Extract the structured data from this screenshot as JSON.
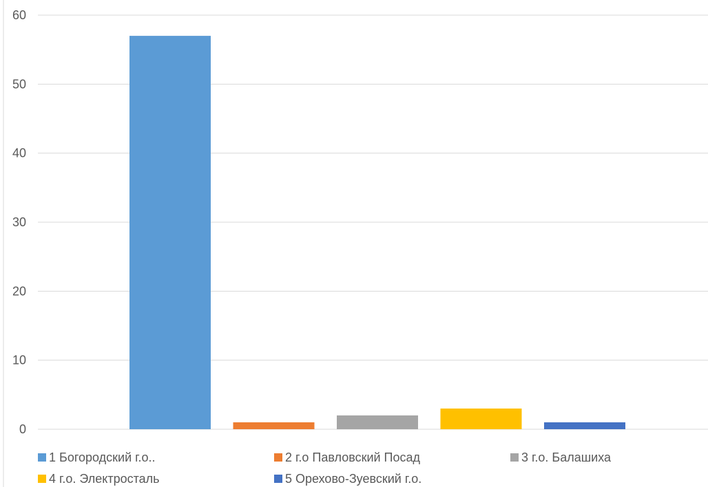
{
  "chart_data": {
    "type": "bar",
    "title": "",
    "xlabel": "",
    "ylabel": "",
    "ylim": [
      0,
      60
    ],
    "yticks": [
      "0",
      "10",
      "20",
      "30",
      "40",
      "50",
      "60"
    ],
    "grid": true,
    "legend_position": "bottom",
    "series": [
      {
        "name": "1 Богородский г.о..",
        "value": 57,
        "color": "#5b9bd5"
      },
      {
        "name": "2 г.о Павловский Посад",
        "value": 1,
        "color": "#ed7d31"
      },
      {
        "name": "3 г.о. Балашиха",
        "value": 2,
        "color": "#a5a5a5"
      },
      {
        "name": "4 г.о. Электросталь",
        "value": 3,
        "color": "#ffc000"
      },
      {
        "name": "5 Орехово-Зуевский г.о.",
        "value": 1,
        "color": "#4472c4"
      }
    ]
  }
}
